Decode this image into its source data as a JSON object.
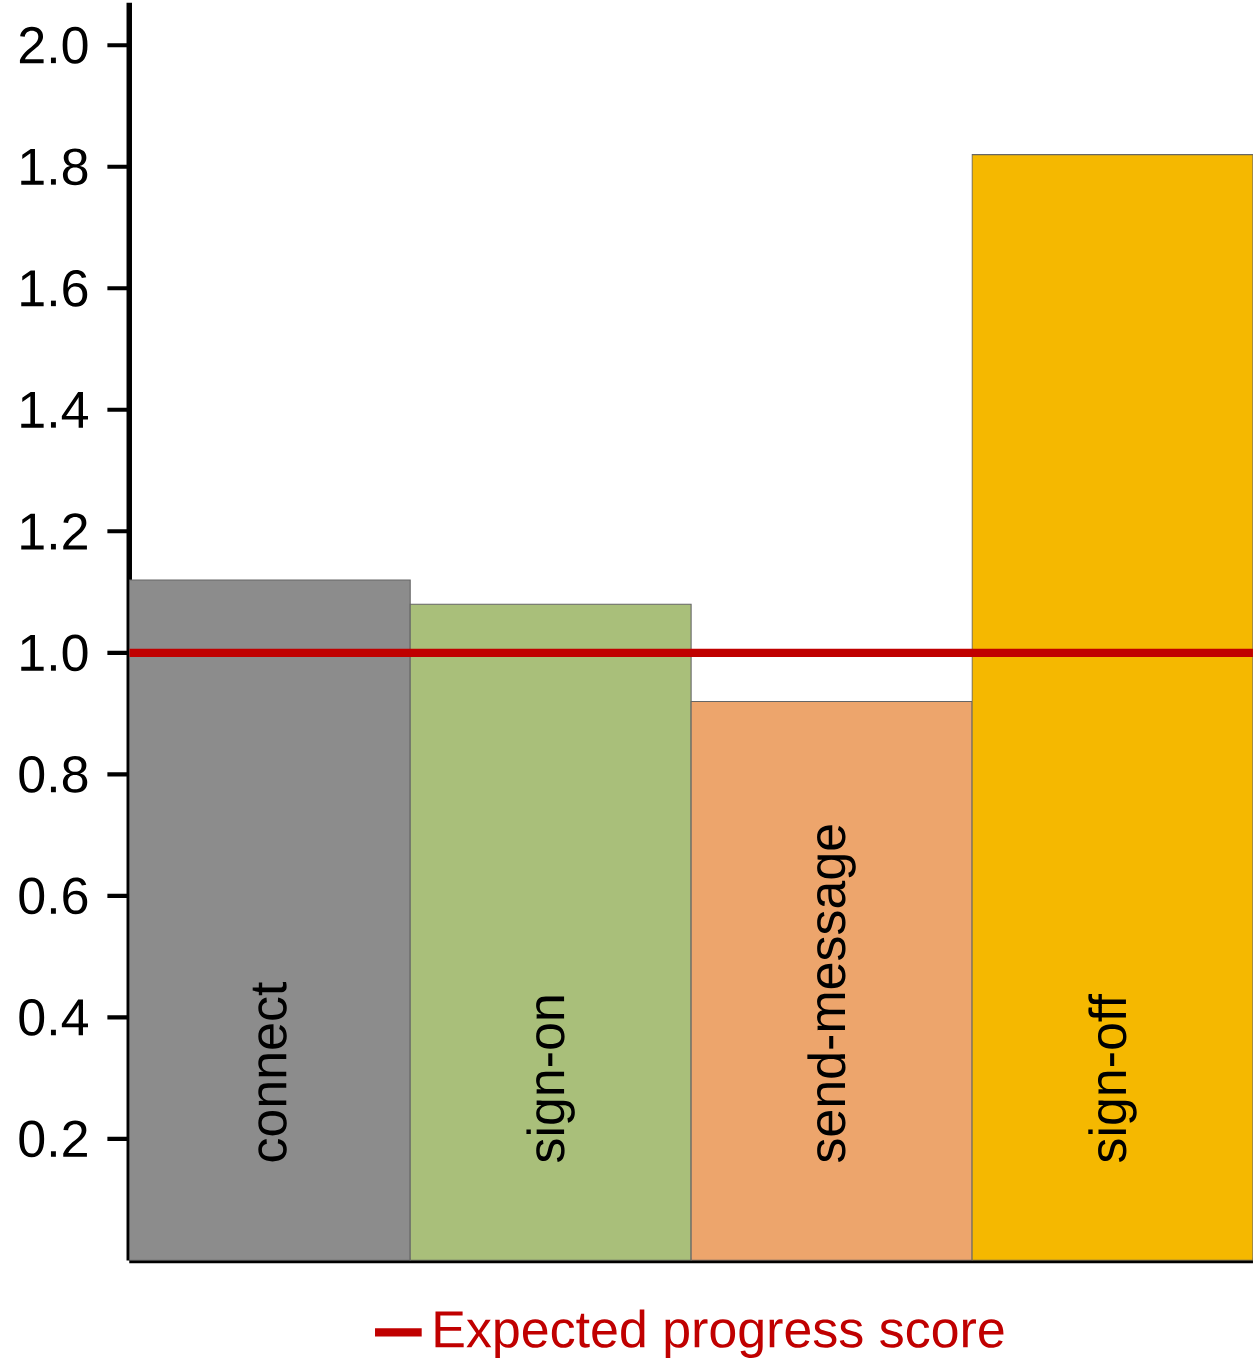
{
  "chart_data": {
    "type": "bar",
    "categories": [
      "connect",
      "sign-on",
      "send-message",
      "sign-off"
    ],
    "values": [
      1.12,
      1.08,
      0.92,
      1.82
    ],
    "colors": [
      "#8c8c8c",
      "#a9bf7a",
      "#eda56c",
      "#f5b800"
    ],
    "ylim": [
      0,
      2.07
    ],
    "yticks": [
      0.2,
      0.4,
      0.6,
      0.8,
      {
        "value": 1,
        "label": "1.0"
      },
      1.2,
      1.4,
      1.6,
      1.8,
      {
        "value": 2,
        "label": "2.0"
      }
    ],
    "ref_lines": [
      {
        "axis": "y",
        "value": 1.0,
        "label": "Expected progress score",
        "color": "#c00000"
      }
    ],
    "legend": "bottom",
    "grid": false
  }
}
